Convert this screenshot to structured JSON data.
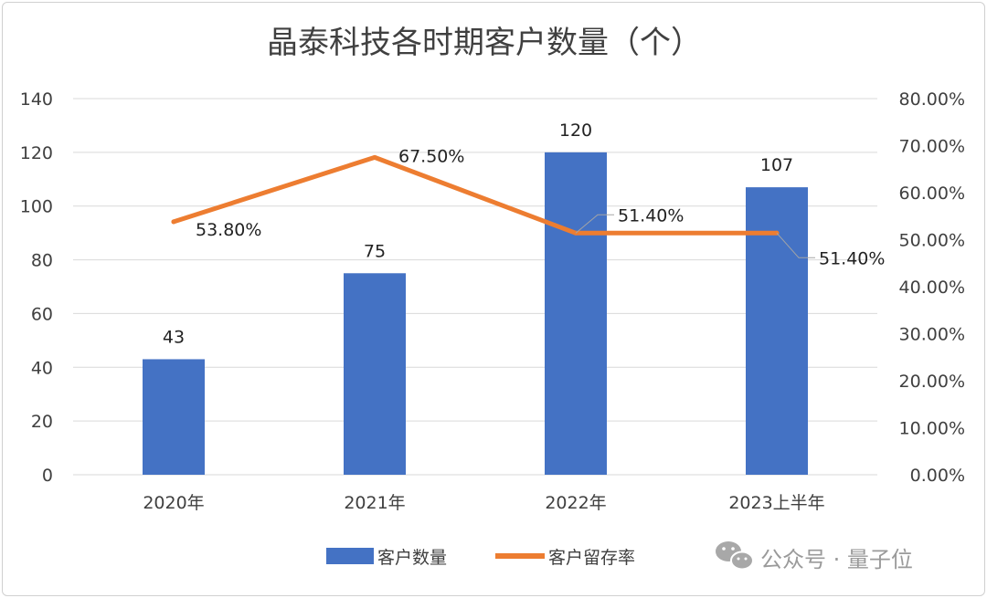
{
  "chart_data": {
    "type": "bar",
    "title": "晶泰科技各时期客户数量（个）",
    "categories": [
      "2020年",
      "2021年",
      "2022年",
      "2023上半年"
    ],
    "series": [
      {
        "name": "客户数量",
        "type": "bar",
        "axis": "left",
        "color": "#4472C4",
        "values": [
          43,
          75,
          120,
          107
        ],
        "labels": [
          "43",
          "75",
          "120",
          "107"
        ]
      },
      {
        "name": "客户留存率",
        "type": "line",
        "axis": "right",
        "color": "#ED7D31",
        "values": [
          53.8,
          67.5,
          51.4,
          51.4
        ],
        "labels": [
          "53.80%",
          "67.50%",
          "51.40%",
          "51.40%"
        ]
      }
    ],
    "y_left": {
      "min": 0,
      "max": 140,
      "ticks": [
        "0",
        "20",
        "40",
        "60",
        "80",
        "100",
        "120",
        "140"
      ]
    },
    "y_right": {
      "min": 0,
      "max": 80,
      "ticks": [
        "0.00%",
        "10.00%",
        "20.00%",
        "30.00%",
        "40.00%",
        "50.00%",
        "60.00%",
        "70.00%",
        "80.00%"
      ]
    },
    "grid": true,
    "legend": "bottom"
  },
  "watermark": {
    "text": "公众号 · 量子位",
    "icon": "wechat-icon"
  }
}
